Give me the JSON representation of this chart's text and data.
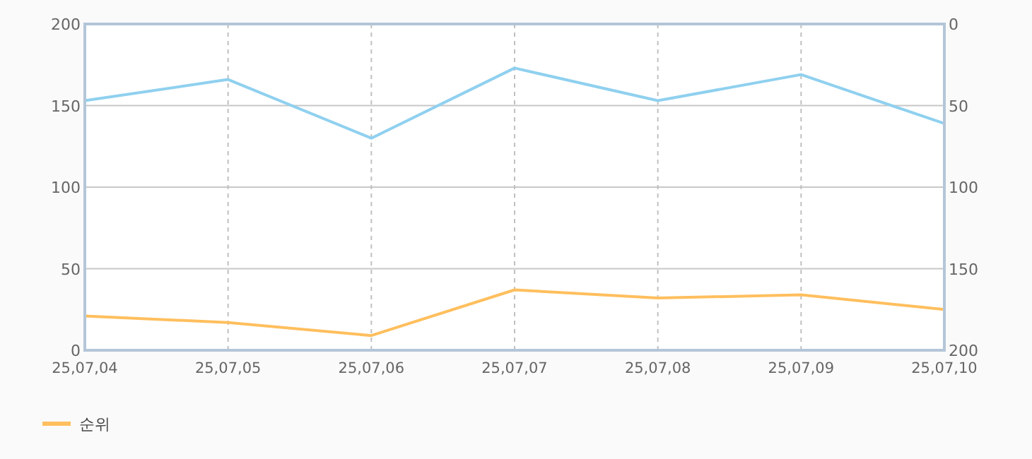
{
  "chart_data": {
    "type": "line",
    "categories": [
      "25,07,04",
      "25,07,05",
      "25,07,06",
      "25,07,07",
      "25,07,08",
      "25,07,09",
      "25,07,10"
    ],
    "series": [
      {
        "color": "#8fd0ef",
        "values": [
          153,
          166,
          130,
          173,
          153,
          169,
          139
        ]
      },
      {
        "name": "순위",
        "color": "#ffbf5e",
        "axis": "y2",
        "values": [
          179,
          183,
          191,
          163,
          168,
          166,
          175
        ]
      }
    ],
    "ylim": [
      0,
      200
    ],
    "yticks": [
      0,
      50,
      100,
      150,
      200
    ],
    "y2lim": [
      200,
      0
    ],
    "y2ticks": [
      0,
      50,
      100,
      150,
      200
    ],
    "grid": true,
    "legend": "bottom left",
    "marker": "none",
    "line_style": "solid"
  }
}
